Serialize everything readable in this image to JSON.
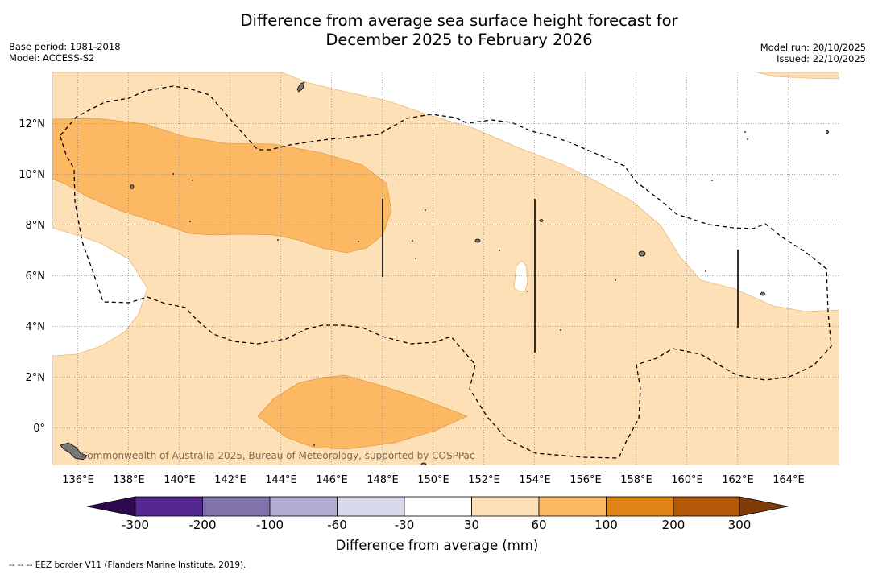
{
  "title_line1": "Difference from average sea surface height forecast for",
  "title_line2": "December 2025 to February 2026",
  "base_period": "Base period: 1981-2018",
  "model": "Model: ACCESS-S2",
  "model_run": "Model run: 20/10/2025",
  "issued": "Issued: 22/10/2025",
  "credit": "Commonwealth of Australia 2025, Bureau of Meteorology, supported by COSPPac",
  "lon_labels": [
    "136°E",
    "138°E",
    "140°E",
    "142°E",
    "144°E",
    "146°E",
    "148°E",
    "150°E",
    "152°E",
    "154°E",
    "156°E",
    "158°E",
    "160°E",
    "162°E",
    "164°E"
  ],
  "lat_labels": [
    "12°N",
    "10°N",
    "8°N",
    "6°N",
    "4°N",
    "2°N",
    "0°"
  ],
  "colorbar": {
    "title": "Difference from average (mm)",
    "ticks": [
      "-300",
      "-200",
      "-100",
      "-60",
      "-30",
      "30",
      "60",
      "100",
      "200",
      "300"
    ],
    "colors": {
      "extend_low": "#2d0a4e",
      "c1": "#54278f",
      "c2": "#8073ac",
      "c3": "#b2abd2",
      "c4": "#d8daeb",
      "c5": "#ffffff",
      "c6": "#fee0b6",
      "c7": "#fdb863",
      "c8": "#e08214",
      "c9": "#b35806",
      "extend_high": "#7f3b08"
    }
  },
  "footnote": "--  --  -- EEZ border V11 (Flanders Marine Institute, 2019)."
}
